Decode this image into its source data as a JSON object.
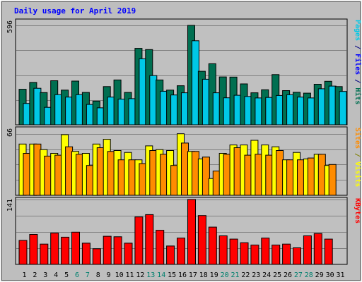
{
  "chart_data": {
    "type": "bar",
    "title": "Daily usage for April 2019",
    "colors": {
      "background": "#bebebe",
      "plot_area": "#c0c0c0",
      "grid": "#808080",
      "title": "#0000ff",
      "hits": "#006f51",
      "files": "#00c8e6",
      "pages": "#00c8e6",
      "visits": "#ffff00",
      "sites": "#ff8c00",
      "kbytes": "#ff0000",
      "day_normal": "#000000",
      "day_weekend": "#00806e"
    },
    "categories": [
      "1",
      "2",
      "3",
      "4",
      "5",
      "6",
      "7",
      "8",
      "9",
      "10",
      "11",
      "12",
      "13",
      "14",
      "15",
      "16",
      "17",
      "18",
      "19",
      "20",
      "21",
      "22",
      "23",
      "24",
      "25",
      "26",
      "27",
      "28",
      "29",
      "30",
      "31"
    ],
    "weekend_days": [
      "6",
      "7",
      "13",
      "14",
      "20",
      "21",
      "27",
      "28"
    ],
    "panels": [
      {
        "name": "hits-files-pages",
        "max_label": "596",
        "ymax": 596,
        "right_labels": [
          {
            "text": "Pages",
            "color": "#00c8e6"
          },
          {
            "text": " / ",
            "color": "#000080"
          },
          {
            "text": "Files",
            "color": "#0000ff"
          },
          {
            "text": " / ",
            "color": "#000080"
          },
          {
            "text": "Hits",
            "color": "#006f51"
          }
        ],
        "series": [
          {
            "name": "Hits",
            "color": "#006f51",
            "values": [
              213,
              254,
              193,
              264,
              208,
              262,
              194,
              142,
              229,
              269,
              194,
              458,
              451,
              269,
              208,
              234,
              596,
              321,
              366,
              287,
              286,
              245,
              192,
              210,
              301,
              205,
              195,
              190,
              243,
              261,
              229
            ]
          },
          {
            "name": "Files",
            "color": "#00c8e6",
            "values": [
              128,
              219,
              105,
              181,
              166,
              181,
              122,
              102,
              166,
              154,
              157,
              396,
              295,
              201,
              179,
              192,
              504,
              273,
              192,
              162,
              177,
              170,
              161,
              164,
              176,
              180,
              166,
              161,
              216,
              232,
              200
            ]
          }
        ]
      },
      {
        "name": "visits-sites",
        "max_label": "66",
        "ymax": 66,
        "right_labels": [
          {
            "text": "Sites",
            "color": "#ff8c00"
          },
          {
            "text": " / ",
            "color": "#808000"
          },
          {
            "text": "Visits",
            "color": "#ffff00"
          }
        ],
        "series": [
          {
            "name": "Visits",
            "color": "#ffff00",
            "values": [
              55,
              55,
              49,
              45,
              65,
              47,
              45,
              55,
              60,
              48,
              46,
              38,
              53,
              49,
              48,
              66,
              47,
              39,
              18,
              45,
              54,
              54,
              59,
              54,
              52,
              38,
              46,
              39,
              44,
              32,
              null
            ]
          },
          {
            "name": "Sites",
            "color": "#ff8c00",
            "values": [
              45,
              55,
              42,
              43,
              52,
              44,
              32,
              51,
              47,
              38,
              38,
              34,
              48,
              44,
              32,
              56,
              47,
              41,
              26,
              44,
              51,
              43,
              44,
              43,
              48,
              38,
              38,
              40,
              44,
              33,
              null
            ]
          }
        ]
      },
      {
        "name": "kbytes",
        "max_label": "141",
        "ymax": 141,
        "right_labels": [
          {
            "text": "KBytes",
            "color": "#ff0000"
          }
        ],
        "series": [
          {
            "name": "KBytes",
            "color": "#ff0000",
            "values": [
              52,
              65,
              44,
              68,
              59,
              70,
              46,
              34,
              61,
              60,
              46,
              103,
              108,
              74,
              40,
              57,
              141,
              106,
              81,
              62,
              55,
              47,
              42,
              57,
              42,
              44,
              36,
              62,
              67,
              55,
              null
            ]
          }
        ]
      }
    ]
  }
}
